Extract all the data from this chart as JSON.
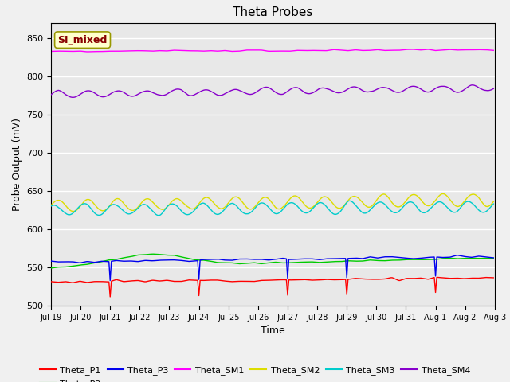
{
  "title": "Theta Probes",
  "xlabel": "Time",
  "ylabel": "Probe Output (mV)",
  "ylim": [
    500,
    870
  ],
  "yticks": [
    500,
    550,
    600,
    650,
    700,
    750,
    800,
    850
  ],
  "plot_bg": "#e8e8e8",
  "fig_bg": "#f0f0f0",
  "annotation_text": "SI_mixed",
  "annotation_bg": "#ffffcc",
  "annotation_border": "#999900",
  "annotation_text_color": "#880000",
  "series": {
    "Theta_P1": {
      "color": "#ff0000",
      "base": 531,
      "trend": 0.35,
      "noise": 0.8
    },
    "Theta_P2": {
      "color": "#00cc00",
      "base": 549,
      "trend": 0.9,
      "noise": 0.5
    },
    "Theta_P3": {
      "color": "#0000ee",
      "base": 557,
      "trend": 0.5,
      "noise": 0.8
    },
    "Theta_SM1": {
      "color": "#ff00ff",
      "base": 833,
      "trend": 0.12,
      "noise": 0.5
    },
    "Theta_SM2": {
      "color": "#dddd00",
      "base": 631,
      "trend": 0.5,
      "noise": 0.8,
      "wave_amp": 8,
      "wave_freq": 1.0
    },
    "Theta_SM3": {
      "color": "#00cccc",
      "base": 625,
      "trend": 0.3,
      "noise": 0.8,
      "wave_amp": 7,
      "wave_freq": 1.0
    },
    "Theta_SM4": {
      "color": "#8800cc",
      "base": 776,
      "trend": 0.6,
      "noise": 0.8,
      "wave_amp": 4,
      "wave_freq": 1.0
    }
  },
  "n_points": 360,
  "spike_days_p1": [
    2,
    5,
    8,
    10,
    13,
    16
  ],
  "spike_days_p3": [
    2,
    5,
    8,
    10,
    13,
    16
  ],
  "spike_depth_p1": 20,
  "spike_depth_p3": 25,
  "x_tick_labels": [
    "Jul 19",
    "Jul 20",
    "Jul 21",
    "Jul 22",
    "Jul 23",
    "Jul 24",
    "Jul 25",
    "Jul 26",
    "Jul 27",
    "Jul 28",
    "Jul 29",
    "Jul 30",
    "Jul 31",
    "Aug 1",
    "Aug 2",
    "Aug 3"
  ],
  "x_tick_positions": [
    0,
    24,
    48,
    72,
    96,
    120,
    144,
    168,
    192,
    216,
    240,
    264,
    288,
    312,
    336,
    360
  ]
}
